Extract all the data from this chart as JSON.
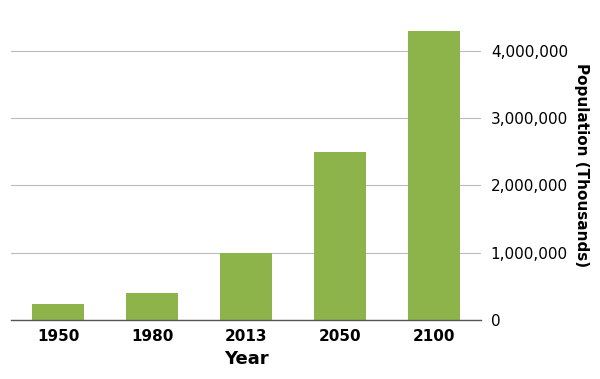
{
  "categories": [
    "1950",
    "1980",
    "2013",
    "2050",
    "2100"
  ],
  "values": [
    230000,
    400000,
    1000000,
    2500000,
    4300000
  ],
  "bar_color": "#8db44a",
  "bar_edgecolor": "#8db44a",
  "xlabel": "Year",
  "ylabel": "Population (Thousands)",
  "ylim": [
    0,
    4600000
  ],
  "yticks": [
    0,
    1000000,
    2000000,
    3000000,
    4000000
  ],
  "background_color": "#ffffff",
  "xlabel_fontsize": 13,
  "ylabel_fontsize": 11,
  "tick_fontsize": 11,
  "bar_width": 0.55,
  "grid_color": "#bbbbbb",
  "spine_color": "#555555"
}
